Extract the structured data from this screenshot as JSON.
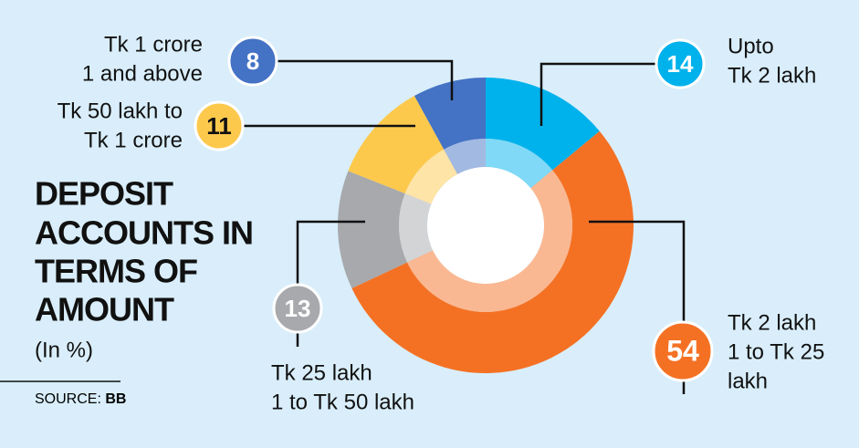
{
  "chart_data": {
    "type": "donut",
    "title": [
      "DEPOSIT",
      "ACCOUNTS IN",
      "TERMS OF",
      "AMOUNT"
    ],
    "subtitle": "(In %)",
    "source": {
      "label": "SOURCE:",
      "value": "BB"
    },
    "categories": [
      [
        "Upto",
        "Tk 2 lakh"
      ],
      [
        "Tk 2 lakh",
        "1 to Tk 25",
        "lakh"
      ],
      [
        "Tk 25 lakh",
        "1 to Tk 50 lakh"
      ],
      [
        "Tk 50 lakh to",
        "Tk 1 crore"
      ],
      [
        "Tk 1 crore",
        "1 and above"
      ]
    ],
    "values": [
      14,
      54,
      13,
      11,
      8
    ],
    "colors": [
      "#00b2ec",
      "#f47124",
      "#a7a9ac",
      "#fdc94d",
      "#4472c4"
    ]
  }
}
